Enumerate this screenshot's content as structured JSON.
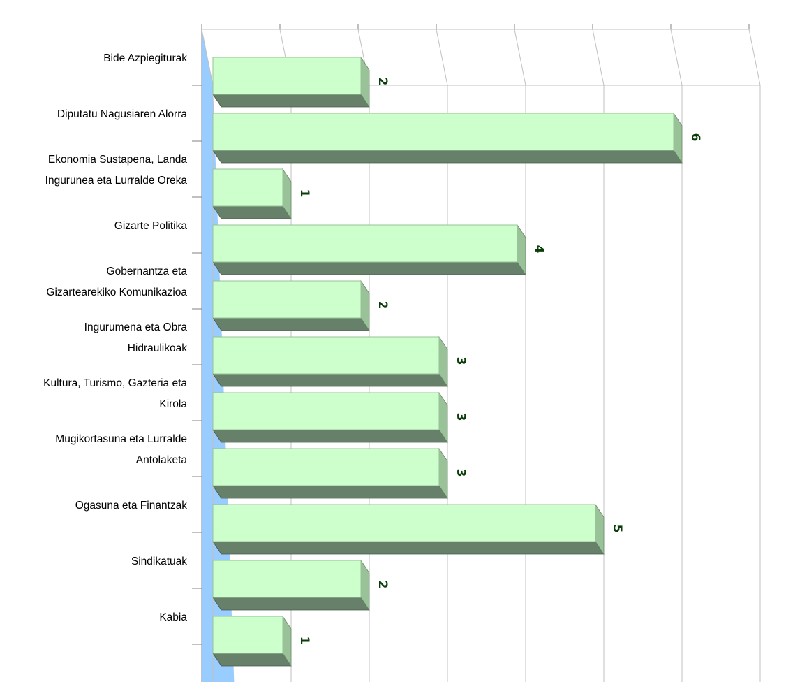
{
  "chart_data": {
    "type": "bar",
    "orientation": "horizontal",
    "categories": [
      [
        "Bide Azpiegiturak"
      ],
      [
        "Diputatu Nagusiaren Alorra"
      ],
      [
        "Ekonomia Sustapena, Landa",
        "Ingurunea eta Lurralde Oreka"
      ],
      [
        "Gizarte Politika"
      ],
      [
        "Gobernantza eta",
        "Gizartearekiko Komunikazioa"
      ],
      [
        "Ingurumena eta Obra",
        "Hidraulikoak"
      ],
      [
        "Kultura, Turismo, Gazteria eta",
        "Kirola"
      ],
      [
        "Mugikortasuna eta Lurralde",
        "Antolaketa"
      ],
      [
        "Ogasuna eta Finantzak"
      ],
      [
        "Sindikatuak"
      ],
      [
        "Kabia"
      ]
    ],
    "values": [
      2,
      6,
      1,
      4,
      2,
      3,
      3,
      3,
      5,
      2,
      1
    ],
    "xlim": [
      0,
      7
    ],
    "ticks": [
      "0",
      "1",
      "2",
      "3",
      "4",
      "5",
      "6",
      "7"
    ],
    "grid": true,
    "style": "3d",
    "colors": {
      "bar_front": "#ccffcc",
      "bar_side": "#99c299",
      "bar_bottom": "#66806a",
      "floor": "#99ccff",
      "grid": "#c0c0c0",
      "data_label": "#0a3d0a"
    }
  }
}
